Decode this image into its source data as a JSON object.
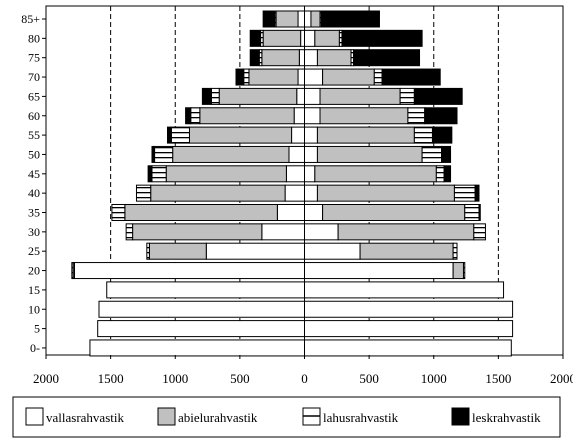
{
  "chart_data": {
    "type": "bar",
    "orientation": "horizontal",
    "layout": "population-pyramid",
    "title": "",
    "xlabel": "",
    "ylabel": "",
    "xlim": [
      -2000,
      2000
    ],
    "x_ticks": [
      -2000,
      -1500,
      -1000,
      -500,
      0,
      500,
      1000,
      1500,
      2000
    ],
    "x_tick_labels": [
      "2000",
      "1500",
      "1000",
      "500",
      "0",
      "500",
      "1000",
      "1500",
      "2000"
    ],
    "y_ticks": [
      "0-",
      "5",
      "10",
      "15",
      "20",
      "25",
      "30",
      "35",
      "40",
      "45",
      "50",
      "55",
      "60",
      "65",
      "70",
      "75",
      "80",
      "85+"
    ],
    "grid": "vertical-dashed",
    "legend_position": "bottom",
    "categories": [
      "0",
      "5",
      "10",
      "15",
      "20",
      "25",
      "30",
      "35",
      "40",
      "45",
      "50",
      "55",
      "60",
      "65",
      "70",
      "75",
      "80",
      "85+"
    ],
    "sides": [
      "left",
      "right"
    ],
    "series": [
      {
        "name": "vallasrahvastik",
        "color": "#ffffff",
        "pattern": "plain",
        "left": [
          1660,
          1600,
          1590,
          1530,
          1780,
          760,
          330,
          210,
          150,
          140,
          120,
          100,
          80,
          60,
          50,
          40,
          30,
          50
        ],
        "right": [
          1600,
          1610,
          1610,
          1540,
          1150,
          430,
          260,
          140,
          100,
          80,
          100,
          100,
          120,
          120,
          140,
          100,
          80,
          50
        ]
      },
      {
        "name": "abielurahvastik",
        "color": "#c0c0c0",
        "pattern": "plain",
        "left": [
          0,
          0,
          0,
          0,
          10,
          440,
          1000,
          1180,
          1040,
          930,
          900,
          790,
          730,
          600,
          380,
          290,
          290,
          170
        ],
        "right": [
          0,
          0,
          0,
          0,
          80,
          720,
          1050,
          1100,
          1060,
          940,
          810,
          750,
          680,
          620,
          400,
          260,
          190,
          70
        ]
      },
      {
        "name": "lahusrahvastik",
        "color": "#ffffff",
        "pattern": "lined",
        "left": [
          0,
          0,
          0,
          0,
          10,
          20,
          50,
          100,
          110,
          110,
          140,
          140,
          70,
          60,
          40,
          20,
          20,
          10
        ],
        "right": [
          0,
          0,
          0,
          0,
          10,
          30,
          90,
          110,
          160,
          60,
          150,
          140,
          130,
          110,
          60,
          20,
          20,
          10
        ]
      },
      {
        "name": "leskrahvastik",
        "color": "#000000",
        "pattern": "plain",
        "left": [
          0,
          0,
          0,
          0,
          0,
          0,
          0,
          0,
          0,
          30,
          20,
          30,
          40,
          70,
          60,
          70,
          80,
          90
        ],
        "right": [
          0,
          0,
          0,
          0,
          0,
          0,
          0,
          10,
          30,
          50,
          70,
          150,
          250,
          370,
          450,
          510,
          620,
          450
        ]
      }
    ]
  }
}
